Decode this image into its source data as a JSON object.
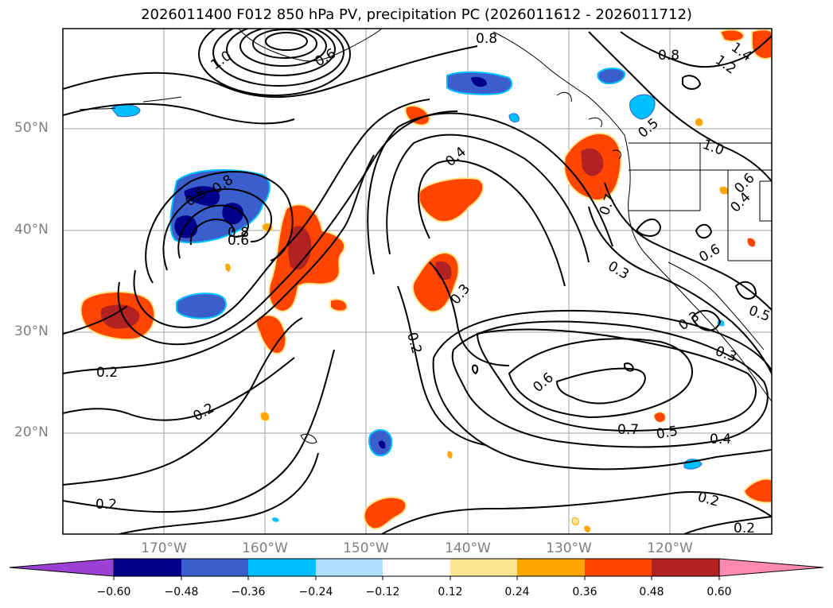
{
  "title": "2026011400 F012 850 hPa PV, precipitation PC (2026011612 - 2026011712)",
  "colors": {
    "background": "#ffffff",
    "land": "#ffffff",
    "contour": "#000000",
    "gridline": "#a0a0a0",
    "axis_label": "#7f7f7f"
  },
  "lat_labels": [
    "50°N",
    "40°N",
    "30°N",
    "20°N"
  ],
  "lon_labels": [
    "170°W",
    "160°W",
    "150°W",
    "140°W",
    "130°W",
    "120°W"
  ],
  "contour_labels": [
    "0.8",
    "1.4",
    "1.2",
    "0.8",
    "1.0",
    "0.6",
    "1.0",
    "0.8",
    "0.5",
    "0.4",
    "0.5",
    "0.4",
    "0.6",
    "0.8",
    "0.7",
    "0.6",
    "0.6",
    "0.3",
    "0.3",
    "0.5",
    "0.3",
    "0.3",
    "0.2",
    "0.2",
    "0.2",
    "0.6",
    "0.7",
    "0.5",
    "0.4",
    "0.2",
    "0.2",
    "0.2"
  ],
  "colorbar": {
    "ticks": [
      "−0.60",
      "−0.48",
      "−0.36",
      "−0.24",
      "−0.12",
      "0.12",
      "0.24",
      "0.36",
      "0.48",
      "0.60"
    ],
    "bins": [
      {
        "color": "#9a40d2"
      },
      {
        "color": "#00008b"
      },
      {
        "color": "#3a5fcd"
      },
      {
        "color": "#00bfff"
      },
      {
        "color": "#b0e2ff"
      },
      {
        "color": "#ffffff"
      },
      {
        "color": "#ffe78f"
      },
      {
        "color": "#ffa500"
      },
      {
        "color": "#ff4500"
      },
      {
        "color": "#b22222"
      },
      {
        "color": "#ff8ab0"
      }
    ]
  }
}
